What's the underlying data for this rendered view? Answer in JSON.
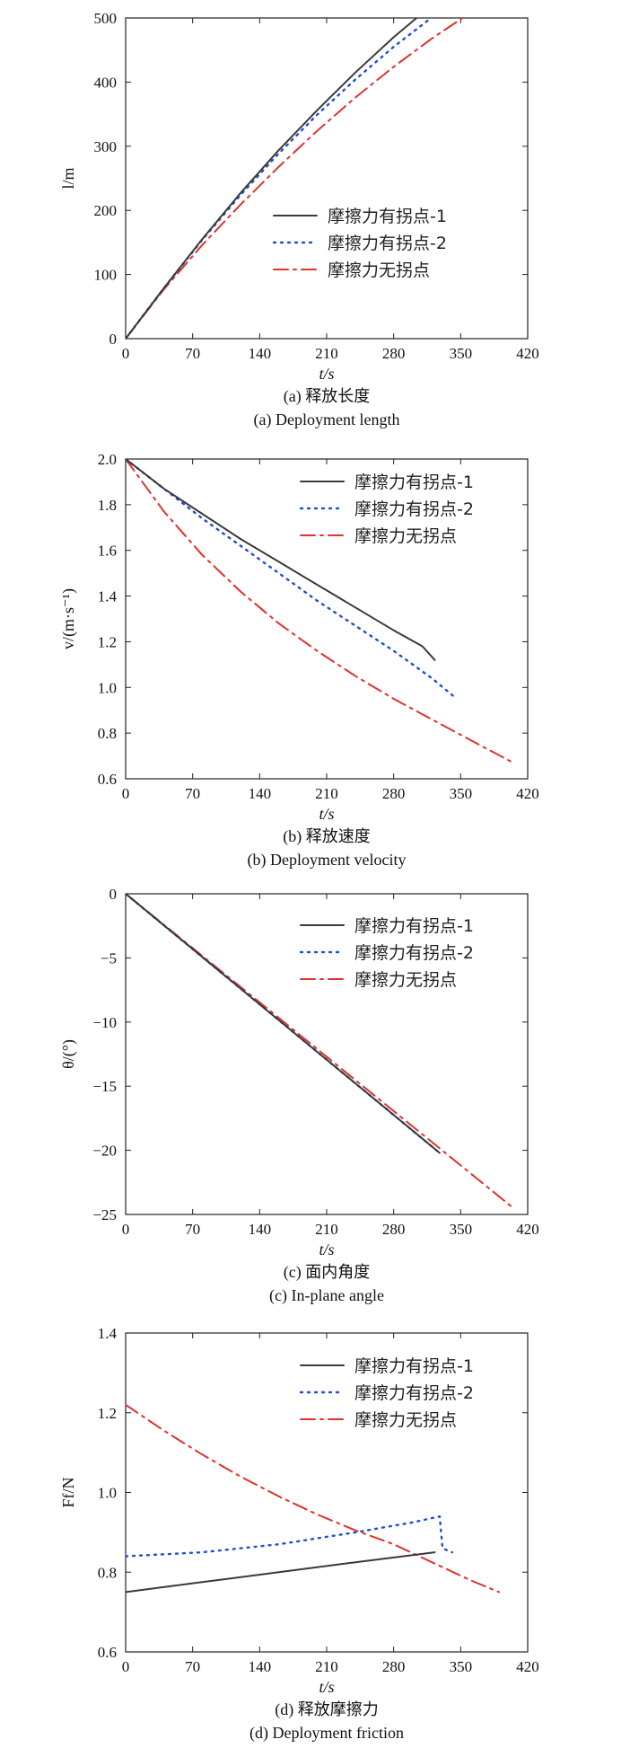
{
  "colors": {
    "series1": "#3a3a3a",
    "series2": "#1f4fd1",
    "series3": "#e0312d"
  },
  "chart_data": [
    {
      "type": "line",
      "ylabel": "l/m",
      "xlabel": "t/s",
      "xlim": [
        0,
        420
      ],
      "ylim": [
        0,
        500
      ],
      "xticks": [
        0,
        70,
        140,
        210,
        280,
        350,
        420
      ],
      "yticks": [
        100,
        200,
        300,
        400,
        500
      ],
      "caption_cn": "(a) 释放长度",
      "caption_en": "(a) Deployment length",
      "legend_position": "center-right",
      "series": [
        {
          "name": "摩擦力有拐点-1",
          "style": "solid",
          "x": [
            0,
            40,
            80,
            120,
            160,
            200,
            240,
            280,
            320,
            328
          ],
          "y": [
            0,
            79,
            155,
            227,
            294,
            356,
            415,
            470,
            520,
            528
          ]
        },
        {
          "name": "摩擦力有拐点-2",
          "style": "dotted",
          "x": [
            0,
            40,
            80,
            120,
            160,
            200,
            240,
            280,
            320,
            343
          ],
          "y": [
            0,
            79,
            154,
            224,
            289,
            349,
            404,
            455,
            501,
            527
          ]
        },
        {
          "name": "摩擦力无拐点",
          "style": "dashdot",
          "x": [
            0,
            40,
            80,
            120,
            160,
            200,
            240,
            280,
            320,
            360,
            405
          ],
          "y": [
            0,
            77,
            146,
            209,
            268,
            324,
            376,
            424,
            468,
            508,
            552
          ]
        }
      ]
    },
    {
      "type": "line",
      "ylabel": "v/(m·s⁻¹)",
      "xlabel": "t/s",
      "xlim": [
        0,
        420
      ],
      "ylim": [
        0.6,
        2.0
      ],
      "xticks": [
        0,
        70,
        140,
        210,
        280,
        350,
        420
      ],
      "yticks": [
        0.6,
        0.8,
        1.0,
        1.2,
        1.4,
        1.6,
        1.8,
        2.0
      ],
      "caption_cn": "(b) 释放速度",
      "caption_en": "(b) Deployment velocity",
      "legend_position": "top-right",
      "series": [
        {
          "name": "摩擦力有拐点-1",
          "style": "solid",
          "x": [
            0,
            40,
            80,
            120,
            160,
            200,
            240,
            280,
            310,
            323
          ],
          "y": [
            2.0,
            1.87,
            1.76,
            1.65,
            1.55,
            1.45,
            1.35,
            1.25,
            1.18,
            1.12
          ]
        },
        {
          "name": "摩擦力有拐点-2",
          "style": "dotted",
          "x": [
            0,
            40,
            80,
            120,
            160,
            200,
            240,
            280,
            320,
            343
          ],
          "y": [
            2.0,
            1.87,
            1.74,
            1.62,
            1.5,
            1.38,
            1.27,
            1.16,
            1.04,
            0.96
          ]
        },
        {
          "name": "摩擦力无拐点",
          "style": "dashdot",
          "x": [
            0,
            40,
            80,
            120,
            160,
            200,
            240,
            280,
            320,
            360,
            405
          ],
          "y": [
            2.0,
            1.77,
            1.58,
            1.42,
            1.28,
            1.16,
            1.05,
            0.95,
            0.86,
            0.77,
            0.67
          ]
        }
      ]
    },
    {
      "type": "line",
      "ylabel": "θ/(°)",
      "xlabel": "t/s",
      "xlim": [
        0,
        420
      ],
      "ylim": [
        -25,
        0
      ],
      "xticks": [
        0,
        70,
        140,
        210,
        280,
        350,
        420
      ],
      "yticks": [
        -25,
        -20,
        -15,
        -10,
        -5,
        0
      ],
      "caption_cn": "(c) 面内角度",
      "caption_en": "(c) In-plane angle",
      "legend_position": "top-right",
      "series": [
        {
          "name": "摩擦力有拐点-1",
          "style": "solid",
          "x": [
            0,
            328
          ],
          "y": [
            0,
            -20.2
          ]
        },
        {
          "name": "摩擦力有拐点-2",
          "style": "dotted",
          "x": [
            0,
            328
          ],
          "y": [
            0,
            -20.2
          ]
        },
        {
          "name": "摩擦力无拐点",
          "style": "dashdot",
          "x": [
            0,
            405
          ],
          "y": [
            0,
            -24.5
          ]
        }
      ]
    },
    {
      "type": "line",
      "ylabel": "Ff/N",
      "xlabel": "t/s",
      "xlim": [
        0,
        420
      ],
      "ylim": [
        0.6,
        1.4
      ],
      "xticks": [
        0,
        70,
        140,
        210,
        280,
        350,
        420
      ],
      "yticks": [
        0.6,
        0.8,
        1.0,
        1.2,
        1.4
      ],
      "caption_cn": "(d) 释放摩擦力",
      "caption_en": "(d) Deployment friction",
      "legend_position": "top-right",
      "series": [
        {
          "name": "摩擦力有拐点-1",
          "style": "solid",
          "x": [
            0,
            80,
            160,
            240,
            323
          ],
          "y": [
            0.75,
            0.775,
            0.8,
            0.825,
            0.85
          ]
        },
        {
          "name": "摩擦力有拐点-2",
          "style": "dotted",
          "x": [
            0,
            80,
            160,
            240,
            300,
            328,
            331,
            341
          ],
          "y": [
            0.84,
            0.85,
            0.87,
            0.9,
            0.925,
            0.94,
            0.86,
            0.85
          ]
        },
        {
          "name": "摩擦力无拐点",
          "style": "dashdot",
          "x": [
            0,
            40,
            80,
            120,
            160,
            200,
            240,
            280,
            320,
            360,
            390
          ],
          "y": [
            1.22,
            1.155,
            1.095,
            1.04,
            0.99,
            0.945,
            0.905,
            0.87,
            0.825,
            0.78,
            0.75
          ]
        }
      ]
    }
  ]
}
